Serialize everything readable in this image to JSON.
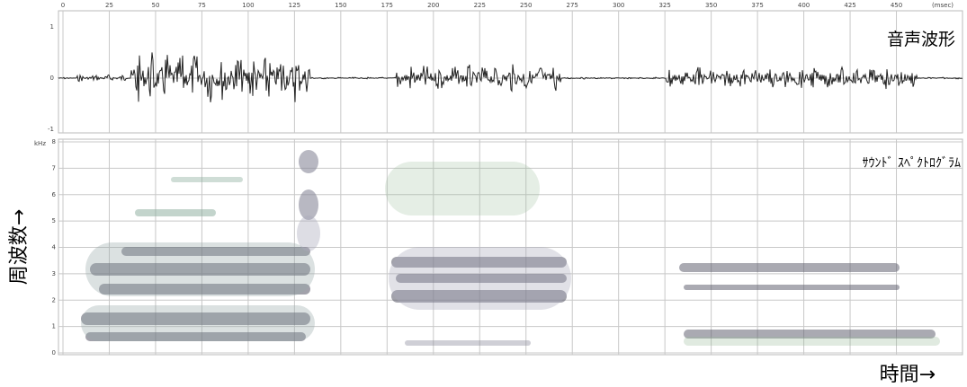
{
  "waveform": {
    "label": "音声波形",
    "y_ticks": [
      "1",
      "0",
      "-1"
    ]
  },
  "spectrogram": {
    "label": "ｻｳﾝﾄﾞ ｽﾍﾟｸﾄﾛｸﾞﾗﾑ",
    "unit": "kHz",
    "y_ticks": [
      "0",
      "1",
      "2",
      "3",
      "4",
      "5",
      "6",
      "7",
      "8"
    ]
  },
  "time_ticks": [
    "0",
    "25",
    "50",
    "75",
    "100",
    "125",
    "150",
    "175",
    "200",
    "225",
    "250",
    "275",
    "300",
    "325",
    "350",
    "375",
    "400",
    "425",
    "450"
  ],
  "time_unit": "(msec)",
  "axis_labels": {
    "frequency": "周波数→",
    "time": "時間→"
  }
}
